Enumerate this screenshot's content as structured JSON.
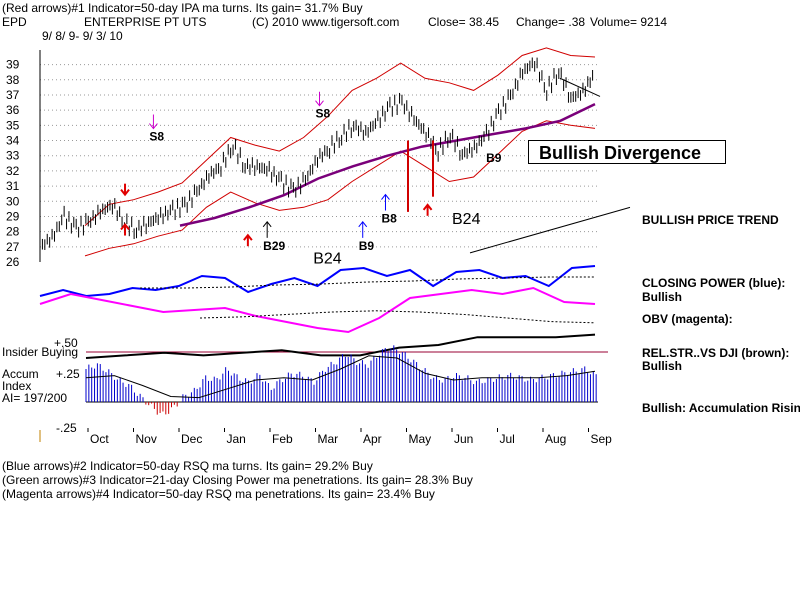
{
  "header": {
    "line1": "(Red arrows)#1 Indicator=50-day IPA ma turns. Its gain= 31.7% Buy",
    "symbol": "EPD",
    "company": "ENTERPRISE PT UTS",
    "copyright": "(C) 2010 www.tigersoft.com",
    "close": "Close=  38.45",
    "change": "Change= .38",
    "volume": "Volume=  9214",
    "date_range": "9/ 8/ 9- 9/ 3/ 10"
  },
  "right_labels": {
    "bullish_divergence": "Bullish Divergence",
    "bullish_price_trend": "BULLISH PRICE TREND",
    "closing_power": "CLOSING POWER (blue):",
    "closing_power_state": "Bullish",
    "obv": "OBV (magenta):",
    "relstr": "REL.STR..VS DJI (brown):",
    "relstr_state": "Bullish",
    "accum": "Bullish: Accumulation Rising"
  },
  "left_labels": {
    "insider": "Insider Buying",
    "plus50": "+.50",
    "accum": "Accum",
    "plus25": "+.25",
    "index": "Index",
    "ai": "AI= 197/200",
    "minus25": "-.25"
  },
  "footer": {
    "line2": "(Blue arrows)#2 Indicator=50-day RSQ ma turns. Its gain= 29.2% Buy",
    "line3": "(Green arrows)#3 Indicator=21-day Closing Power ma penetrations. Its gain= 28.3% Buy",
    "line4": "(Magenta arrows)#4 Indicator=50-day RSQ ma penetrations. Its gain= 23.4% Buy"
  },
  "colors": {
    "price": "#000000",
    "bands": "#d00000",
    "ma": "#7a007a",
    "closing_power": "#0000ff",
    "obv": "#ff00ff",
    "relstr": "#000000",
    "accum_pos": "#0000cc",
    "accum_neg": "#cc0000"
  },
  "chart_data": {
    "type": "line",
    "months": [
      "Oct",
      "Nov",
      "Dec",
      "Jan",
      "Feb",
      "Mar",
      "Apr",
      "May",
      "Jun",
      "Jul",
      "Aug",
      "Sep"
    ],
    "y_ticks": [
      26,
      27,
      28,
      29,
      30,
      31,
      32,
      33,
      34,
      35,
      36,
      37,
      38,
      39
    ],
    "ylim": [
      26,
      39.5
    ],
    "price": [
      27,
      27.6,
      29,
      28.2,
      28.6,
      29.3,
      29.8,
      28.6,
      28.1,
      28.6,
      29,
      29.4,
      29.7,
      30.6,
      31.7,
      32.3,
      33.7,
      32.3,
      32.3,
      32,
      31.3,
      30.7,
      31.4,
      32.8,
      33.5,
      34.3,
      35,
      34.5,
      35.3,
      36.2,
      36.5,
      35.4,
      34.5,
      33.3,
      34.4,
      33.1,
      33.5,
      34.4,
      35.8,
      36.9,
      38.5,
      39.2,
      37.3,
      38.6,
      36.8,
      37.2,
      38.45
    ],
    "upper_band": [
      28.4,
      29.8,
      30.1,
      30.6,
      31.2,
      32.7,
      34.2,
      33.7,
      33.3,
      34.2,
      35.6,
      37.3,
      38.1,
      39.1,
      38.1,
      37.8,
      37.3,
      38.3,
      39.6,
      40.1,
      39.6,
      39.5
    ],
    "lower_band": [
      26.4,
      26.9,
      27.2,
      27.7,
      28.1,
      29.6,
      30.6,
      29.9,
      29.4,
      29.6,
      30.1,
      31.3,
      32.3,
      33.3,
      32.3,
      31.3,
      31.6,
      33.1,
      34.6,
      35.3,
      35,
      34.8
    ],
    "ma": [
      28.4,
      28.9,
      29.6,
      30.4,
      31.5,
      32.3,
      33,
      33.6,
      34,
      34.4,
      34.8,
      35.3,
      36.4
    ],
    "closing_power": [
      40,
      34,
      40,
      38,
      32,
      34,
      30,
      20,
      22,
      36,
      28,
      22,
      30,
      14,
      12,
      20,
      14,
      30,
      16,
      14,
      22,
      20,
      30,
      12,
      10
    ],
    "obv": [
      16,
      6,
      12,
      18,
      24,
      22,
      20,
      28,
      34,
      40,
      44,
      30,
      10,
      6,
      2,
      6,
      0,
      14,
      16
    ],
    "rel_strength": [
      10,
      9,
      8,
      9,
      8,
      7,
      9,
      9,
      6,
      5,
      2,
      2,
      2,
      1
    ],
    "accumulation": [
      0.3,
      0.34,
      0.28,
      0.2,
      0.15,
      0.05,
      -0.04,
      -0.12,
      -0.06,
      0.05,
      0.1,
      0.22,
      0.2,
      0.3,
      0.22,
      0.18,
      0.25,
      0.12,
      0.2,
      0.26,
      0.24,
      0.18,
      0.3,
      0.36,
      0.44,
      0.36,
      0.34,
      0.44,
      0.5,
      0.46,
      0.38,
      0.3,
      0.22,
      0.2,
      0.24,
      0.22,
      0.18,
      0.2,
      0.22,
      0.24,
      0.22,
      0.2,
      0.22,
      0.24,
      0.26,
      0.28,
      0.3,
      0.24
    ],
    "chart_labels": [
      {
        "text": "S8",
        "x": 1.35,
        "y": 34,
        "arrow": "magenta-down"
      },
      {
        "text": "S8",
        "x": 5.0,
        "y": 35.5,
        "arrow": "magenta-down"
      },
      {
        "text": "B29",
        "x": 3.85,
        "y": 26.8,
        "arrow": "black-up"
      },
      {
        "text": "B24",
        "x": 4.95,
        "y": 25.9,
        "big": true
      },
      {
        "text": "B9",
        "x": 5.95,
        "y": 26.8,
        "arrow": "blue-up"
      },
      {
        "text": "B8",
        "x": 6.45,
        "y": 28.6,
        "arrow": "blue-up"
      },
      {
        "text": "B24",
        "x": 8.0,
        "y": 28.5,
        "big": true
      },
      {
        "text": "B9",
        "x": 8.75,
        "y": 32.6
      }
    ],
    "red_arrows": [
      {
        "x": 0.55,
        "y": 30.5,
        "dir": "down"
      },
      {
        "x": 0.55,
        "y": 28.4,
        "dir": "up"
      },
      {
        "x": 3.25,
        "y": 27.7,
        "dir": "up"
      },
      {
        "x": 7.2,
        "y": 29.7,
        "dir": "up"
      }
    ]
  }
}
